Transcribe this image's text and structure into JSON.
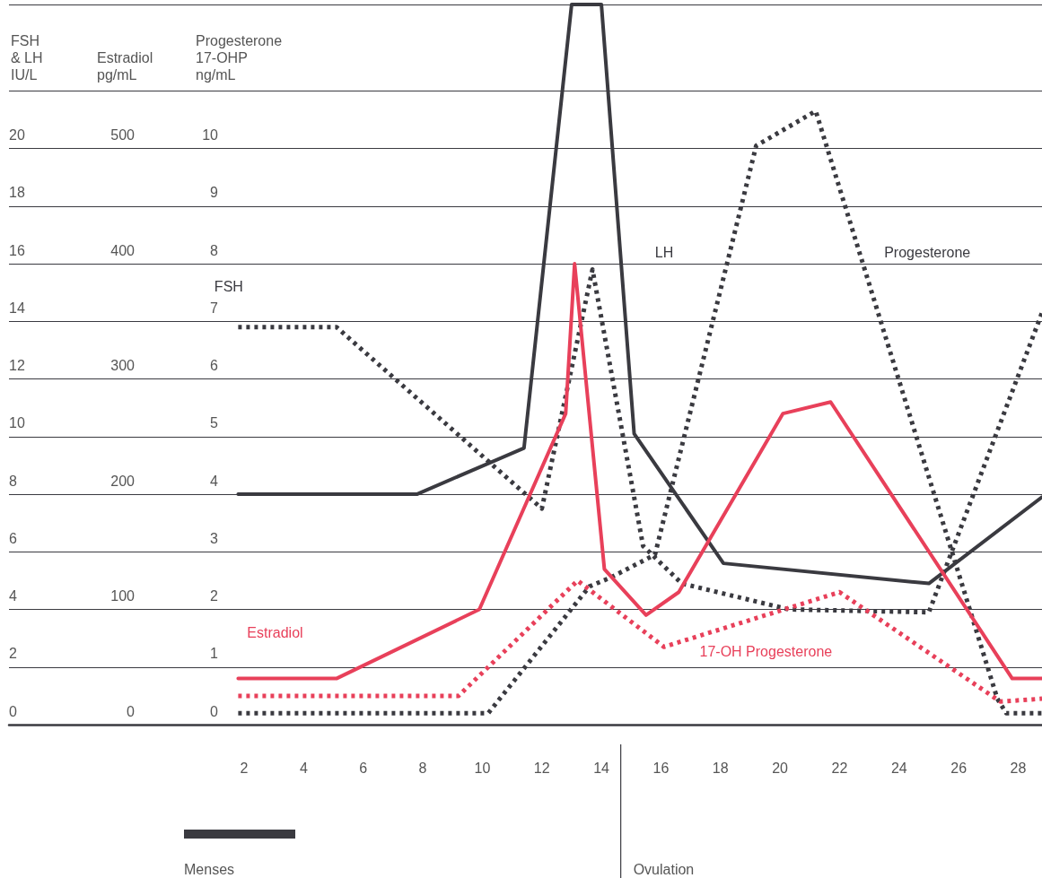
{
  "chart_data": {
    "type": "line",
    "ylabel": "FSH & LH IU/L",
    "y2label": "Estradiol pg/mL",
    "y3label": "Progesterone 17-OHP ng/mL",
    "xlim": [
      -5.9,
      28.8
    ],
    "xticks": [
      2,
      4,
      6,
      8,
      10,
      12,
      14,
      16,
      18,
      20,
      22,
      24,
      26,
      28
    ],
    "ylim": [
      0,
      25
    ],
    "yticks": [
      0,
      2,
      4,
      6,
      8,
      10,
      12,
      14,
      16,
      18,
      20,
      {
        "value": 22,
        "label": null
      },
      {
        "value": 25,
        "label": null
      }
    ],
    "y2lim": [
      0,
      625
    ],
    "y2ticks": [
      0,
      100,
      200,
      300,
      400,
      500
    ],
    "y3lim": [
      0,
      12.5
    ],
    "y3ticks": [
      0,
      1,
      2,
      3,
      4,
      5,
      6,
      7,
      8,
      9,
      10
    ],
    "grid": "y",
    "marker": "none",
    "series": [
      {
        "name": "FSH",
        "color": "#3a3a40",
        "line_style": "dotted",
        "x": [
          1.8,
          5.1,
          12.0,
          13.7,
          15.4,
          16.7,
          20.3,
          25.0,
          28.8
        ],
        "values": [
          13.8,
          13.8,
          7.5,
          15.8,
          6.2,
          4.9,
          4.0,
          3.9,
          14.3
        ]
      },
      {
        "name": "LH",
        "color": "#3a3a40",
        "line_style": "solid",
        "x": [
          1.8,
          7.8,
          11.4,
          13.0,
          14.0,
          15.1,
          18.1,
          25.0,
          28.8
        ],
        "values": [
          8.0,
          8.0,
          9.6,
          25,
          25,
          10.1,
          5.6,
          4.9,
          7.9
        ]
      },
      {
        "name": "Progesterone",
        "color": "#3a3a40",
        "line_style": "dotted",
        "axis": "y3",
        "x": [
          1.8,
          10.2,
          13.6,
          14.3,
          15.8,
          19.2,
          21.2,
          27.3,
          27.6,
          28.8
        ],
        "values": [
          0.2,
          0.2,
          2.4,
          2.55,
          2.95,
          10.05,
          10.65,
          0.45,
          0.2,
          0.2
        ]
      },
      {
        "name": "Estradiol",
        "color": "#e8405a",
        "line_style": "solid",
        "axis": "y2",
        "x": [
          1.8,
          5.1,
          9.9,
          12.8,
          13.1,
          14.1,
          15.5,
          16.6,
          20.1,
          21.7,
          27.8,
          28.8
        ],
        "values": [
          40,
          40,
          100,
          270,
          400,
          135,
          95,
          115,
          270,
          280,
          40,
          40
        ]
      },
      {
        "name": "17-OH Progesterone",
        "color": "#e8405a",
        "line_style": "dotted",
        "axis": "y3",
        "x": [
          1.8,
          9.2,
          13.2,
          16.1,
          22.0,
          27.4,
          28.8
        ],
        "values": [
          0.5,
          0.5,
          2.5,
          1.35,
          2.3,
          0.4,
          0.45
        ]
      }
    ],
    "ref_lines": [
      {
        "axis": "x",
        "value": 14.65,
        "label": "Ovulation",
        "color": "#3a3a40"
      }
    ],
    "annotations": [
      "Menses"
    ]
  }
}
